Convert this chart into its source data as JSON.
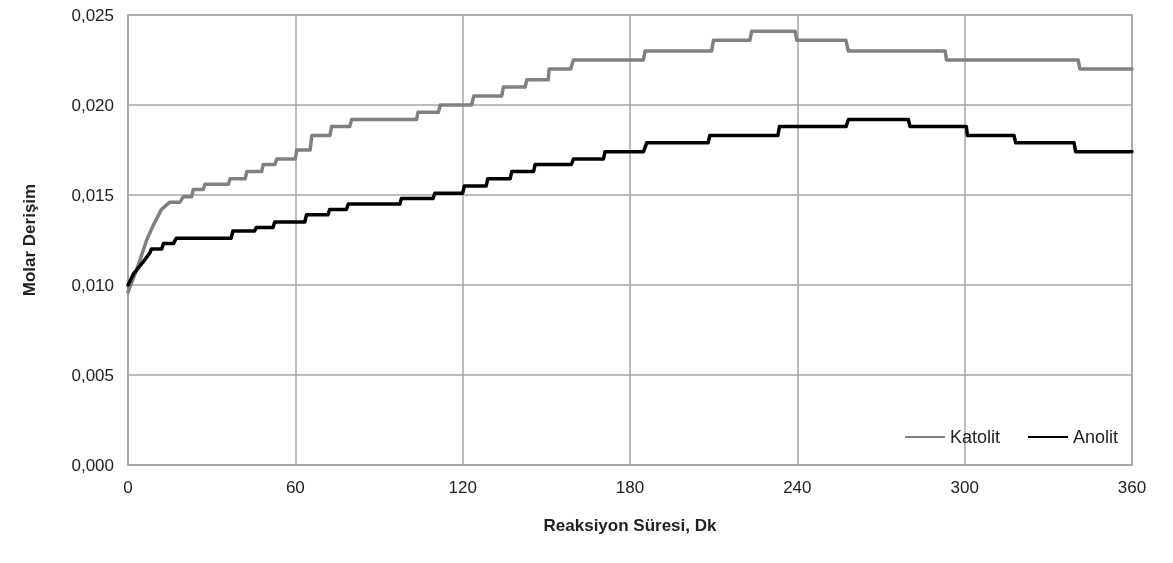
{
  "chart_data": {
    "type": "line",
    "xlabel": "Reaksiyon Süresi, Dk",
    "ylabel": "Molar Derişim",
    "xlim": [
      0,
      360
    ],
    "xticks": [
      0,
      60,
      120,
      180,
      240,
      300,
      360
    ],
    "ylim": [
      0,
      0.025
    ],
    "yticks": [
      {
        "value": 0,
        "label": "0,000"
      },
      {
        "value": 0.005,
        "label": "0,005"
      },
      {
        "value": 0.01,
        "label": "0,010"
      },
      {
        "value": 0.015,
        "label": "0,015"
      },
      {
        "value": 0.02,
        "label": "0,020"
      },
      {
        "value": 0.025,
        "label": "0,025"
      }
    ],
    "grid": true,
    "legend": "bottom right",
    "marker": "none",
    "line_style": "solid",
    "series": [
      {
        "name": "Katolit",
        "color": "#808080",
        "x": [
          0,
          3,
          6.7,
          9,
          12,
          15,
          18.6,
          19.8,
          22.8,
          23.4,
          27,
          27.6,
          36,
          36.6,
          42,
          42.6,
          47.9,
          48.5,
          52.7,
          53.3,
          60,
          60.5,
          65.3,
          65.9,
          72.4,
          73,
          79.5,
          80.2,
          103.5,
          104,
          111.3,
          112,
          123.2,
          124,
          134,
          134.6,
          142.4,
          143,
          150.7,
          151,
          158.7,
          159.7,
          184.8,
          185.4,
          209.3,
          209.9,
          223,
          223.6,
          239.2,
          239.8,
          257.4,
          258.3,
          293,
          293.5,
          340.7,
          341.3,
          360
        ],
        "values": [
          0.0096,
          0.0108,
          0.0125,
          0.0133,
          0.0142,
          0.0146,
          0.0146,
          0.0149,
          0.0149,
          0.0153,
          0.0153,
          0.0156,
          0.0156,
          0.0159,
          0.0159,
          0.0163,
          0.0163,
          0.0167,
          0.0167,
          0.017,
          0.017,
          0.0175,
          0.0175,
          0.0183,
          0.0183,
          0.0188,
          0.0188,
          0.0192,
          0.0192,
          0.0196,
          0.0196,
          0.02,
          0.02,
          0.0205,
          0.0205,
          0.021,
          0.021,
          0.0214,
          0.0214,
          0.022,
          0.022,
          0.0225,
          0.0225,
          0.023,
          0.023,
          0.0236,
          0.0236,
          0.0241,
          0.0241,
          0.0236,
          0.0236,
          0.023,
          0.023,
          0.0225,
          0.0225,
          0.022,
          0.022
        ]
      },
      {
        "name": "Anolit",
        "color": "#000000",
        "x": [
          0,
          1.9,
          5.5,
          7.9,
          8.4,
          12.1,
          12.7,
          16.3,
          17.3,
          37,
          37.6,
          45.4,
          46,
          52,
          52.6,
          63.4,
          64,
          71.7,
          72.3,
          78.3,
          79,
          97.5,
          98,
          109.4,
          110,
          120,
          120.6,
          128.4,
          129,
          137,
          137.6,
          145.4,
          146,
          159,
          159.7,
          170.5,
          171,
          184.8,
          186,
          208,
          208.6,
          233,
          233.6,
          257.5,
          258.3,
          279.8,
          280.4,
          300.6,
          301,
          317.7,
          318.3,
          339.2,
          339.8,
          360
        ],
        "values": [
          0.01,
          0.0106,
          0.0113,
          0.0118,
          0.012,
          0.012,
          0.0123,
          0.0123,
          0.0126,
          0.0126,
          0.013,
          0.013,
          0.0132,
          0.0132,
          0.0135,
          0.0135,
          0.0139,
          0.0139,
          0.0142,
          0.0142,
          0.0145,
          0.0145,
          0.0148,
          0.0148,
          0.0151,
          0.0151,
          0.0155,
          0.0155,
          0.0159,
          0.0159,
          0.0163,
          0.0163,
          0.0167,
          0.0167,
          0.017,
          0.017,
          0.0174,
          0.0174,
          0.0179,
          0.0179,
          0.0183,
          0.0183,
          0.0188,
          0.0188,
          0.0192,
          0.0192,
          0.0188,
          0.0188,
          0.0183,
          0.0183,
          0.0179,
          0.0179,
          0.0174,
          0.0174
        ]
      }
    ]
  }
}
